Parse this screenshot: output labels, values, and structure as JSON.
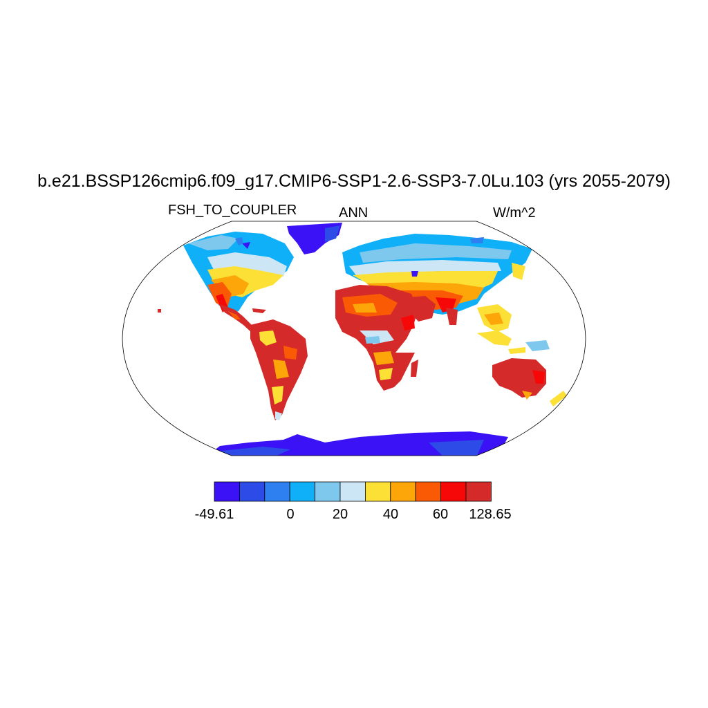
{
  "title": "b.e21.BSSP126cmip6.f09_g17.CMIP6-SSP1-2.6-SSP3-7.0Lu.103 (yrs 2055-2079)",
  "variable": "FSH_TO_COUPLER",
  "period": "ANN",
  "units": "W/m^2",
  "colorbar": {
    "colors": [
      "#3a12f5",
      "#2d4be6",
      "#2e80f0",
      "#10b0f8",
      "#7ec8ee",
      "#cde6f6",
      "#fde035",
      "#fca60a",
      "#fb5a05",
      "#f60808",
      "#d52a2a"
    ],
    "labels": [
      "-49.61",
      "0",
      "20",
      "40",
      "60",
      "128.65"
    ]
  }
}
